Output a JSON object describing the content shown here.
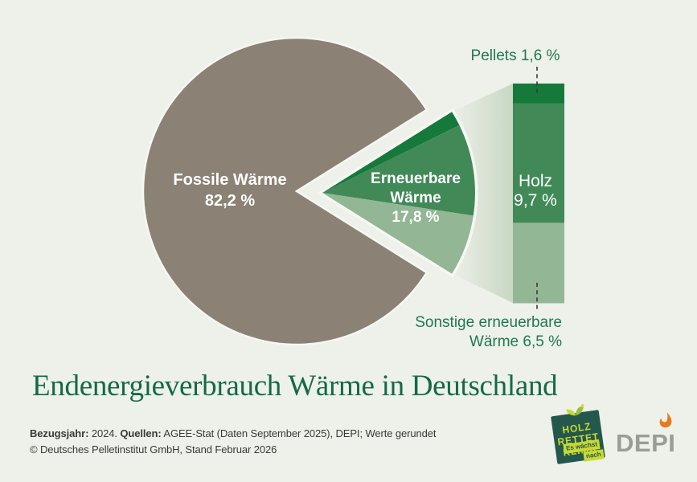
{
  "title": "Endenergieverbrauch Wärme in Deutschland",
  "chart_data": {
    "type": "pie",
    "title": "Endenergieverbrauch Wärme in Deutschland",
    "value_unit": "%",
    "legend_position": "none",
    "slices": [
      {
        "label": "Fossile Wärme",
        "value": 82.2,
        "display": "82,2 %",
        "color": "#8b8275"
      },
      {
        "label": "Erneuerbare Wärme",
        "value": 17.8,
        "display": "17,8 %",
        "color": "#418a58",
        "exploded": true,
        "breakdown": [
          {
            "label": "Pellets",
            "value": 1.6,
            "display": "1,6 %",
            "color": "#15793b"
          },
          {
            "label": "Holz",
            "value": 9.7,
            "display": "9,7 %",
            "color": "#418a58"
          },
          {
            "label": "Sonstige erneuerbare Wärme",
            "value": 6.5,
            "display": "6,5 %",
            "color": "#93b795"
          }
        ]
      }
    ]
  },
  "labels": {
    "fossile_line1": "Fossile Wärme",
    "fossile_line2": "82,2 %",
    "erneuerbare_line1": "Erneuerbare",
    "erneuerbare_line2": "Wärme",
    "erneuerbare_line3": "17,8 %",
    "pellets": "Pellets 1,6 %",
    "holz_line1": "Holz",
    "holz_line2": "9,7 %",
    "sonstige_line1": "Sonstige erneuerbare",
    "sonstige_line2": "Wärme 6,5 %"
  },
  "footer": {
    "bezugsjahr_label": "Bezugsjahr:",
    "bezugsjahr_value": "2024.",
    "quellen_label": "Quellen:",
    "quellen_value": "AGEE-Stat (Daten September 2025), DEPI; Werte gerundet",
    "copyright": "© Deutsches Pelletinstitut GmbH, Stand Februar 2026"
  },
  "logos": {
    "holz_rettet_klima": {
      "line1": "HOLZ",
      "line2": "RETTET",
      "line3": "KLIMA",
      "banner_line1": "Es wächst",
      "banner_line2": "nach",
      "bg_color": "#24584c",
      "text_color": "#c8d934"
    },
    "depi": {
      "text": "DEPI",
      "text_color": "#9c9c96",
      "flame_color": "#e8791d"
    }
  },
  "colors": {
    "page_background": "#eef0ea",
    "title_green": "#136a47",
    "label_green": "#1e7a4e",
    "white_stroke": "#f6f7f3",
    "funnel_start": "#edf0e9",
    "funnel_end": "#c9d7c4",
    "dash_line": "#3a3a39",
    "footer_text": "#3a3a38"
  }
}
